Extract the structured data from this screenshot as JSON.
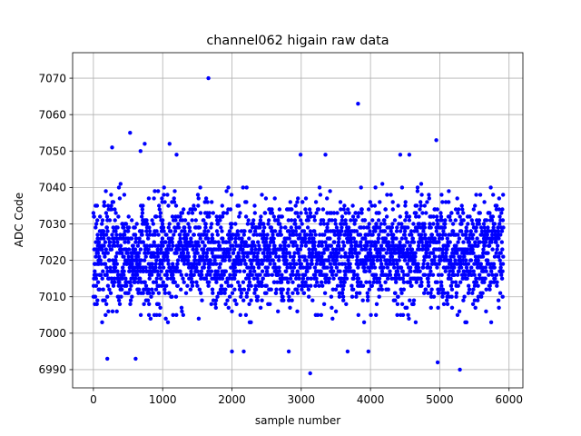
{
  "chart_data": {
    "type": "scatter",
    "title": "channel062 higain raw data",
    "xlabel": "sample number",
    "ylabel": "ADC Code",
    "xlim": [
      -300,
      6200
    ],
    "ylim": [
      6985,
      7077
    ],
    "xticks": [
      0,
      1000,
      2000,
      3000,
      4000,
      5000,
      6000
    ],
    "yticks": [
      6990,
      7000,
      7010,
      7020,
      7030,
      7040,
      7050,
      7060,
      7070
    ],
    "xtick_labels": [
      "0",
      "1000",
      "2000",
      "3000",
      "4000",
      "5000",
      "6000"
    ],
    "ytick_labels": [
      "6990",
      "7000",
      "7010",
      "7020",
      "7030",
      "7040",
      "7050",
      "7060",
      "7070"
    ],
    "grid": true,
    "marker_color": "#0000ff",
    "n_samples": 5920,
    "x_step": 1,
    "value_range": [
      6989,
      7070
    ],
    "core_range": [
      7005,
      7037
    ],
    "center": 7022,
    "outliers": [
      {
        "x": 1660,
        "y": 7070
      },
      {
        "x": 3820,
        "y": 7063
      },
      {
        "x": 4950,
        "y": 7053
      },
      {
        "x": 530,
        "y": 7055
      },
      {
        "x": 1100,
        "y": 7052
      },
      {
        "x": 740,
        "y": 7052
      },
      {
        "x": 3130,
        "y": 6989
      },
      {
        "x": 5290,
        "y": 6990
      },
      {
        "x": 4970,
        "y": 6992
      },
      {
        "x": 200,
        "y": 6993
      },
      {
        "x": 610,
        "y": 6993
      },
      {
        "x": 2990,
        "y": 7049
      },
      {
        "x": 3350,
        "y": 7049
      },
      {
        "x": 3970,
        "y": 6995
      },
      {
        "x": 2000,
        "y": 6995
      },
      {
        "x": 2170,
        "y": 6995
      },
      {
        "x": 2820,
        "y": 6995
      },
      {
        "x": 3670,
        "y": 6995
      },
      {
        "x": 4430,
        "y": 7049
      },
      {
        "x": 4560,
        "y": 7049
      },
      {
        "x": 680,
        "y": 7050
      },
      {
        "x": 270,
        "y": 7051
      },
      {
        "x": 1200,
        "y": 7049
      }
    ]
  }
}
